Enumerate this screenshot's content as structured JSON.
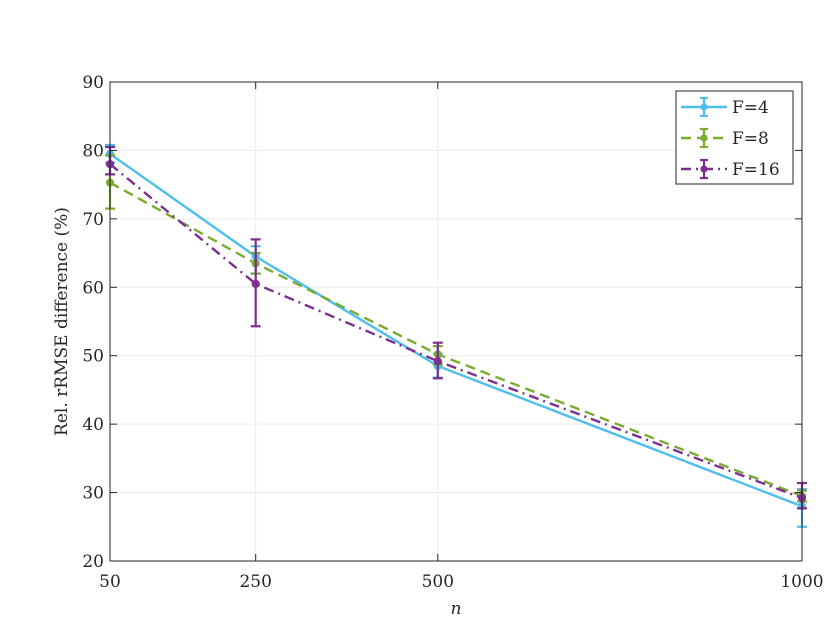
{
  "chart_data": {
    "type": "line",
    "xlabel": "n",
    "ylabel": "Rel. rRMSE difference (%)",
    "xlim": [
      50,
      1000
    ],
    "ylim": [
      20,
      90
    ],
    "xticks": [
      50,
      250,
      500,
      1000
    ],
    "yticks": [
      20,
      30,
      40,
      50,
      60,
      70,
      80,
      90
    ],
    "grid": true,
    "legend_position": "top-right",
    "x": [
      50,
      250,
      500,
      1000
    ],
    "series": [
      {
        "name": "F=4",
        "color": "#4dbeee",
        "dash": "solid",
        "values": [
          79.5,
          64.5,
          48.5,
          28.0
        ],
        "err_low": [
          1.3,
          2.5,
          1.7,
          3.0
        ],
        "err_high": [
          1.3,
          1.5,
          1.8,
          2.5
        ]
      },
      {
        "name": "F=8",
        "color": "#77ac30",
        "dash": "dashed",
        "values": [
          75.3,
          63.5,
          50.2,
          29.5
        ],
        "err_low": [
          3.8,
          1.5,
          1.5,
          0.8
        ],
        "err_high": [
          4.0,
          1.5,
          1.2,
          0.8
        ]
      },
      {
        "name": "F=16",
        "color": "#7e2f8e",
        "dash": "dashdot",
        "values": [
          78.0,
          60.5,
          49.2,
          29.2
        ],
        "err_low": [
          1.5,
          6.2,
          2.5,
          1.5
        ],
        "err_high": [
          2.5,
          6.5,
          2.7,
          2.2
        ]
      }
    ]
  }
}
